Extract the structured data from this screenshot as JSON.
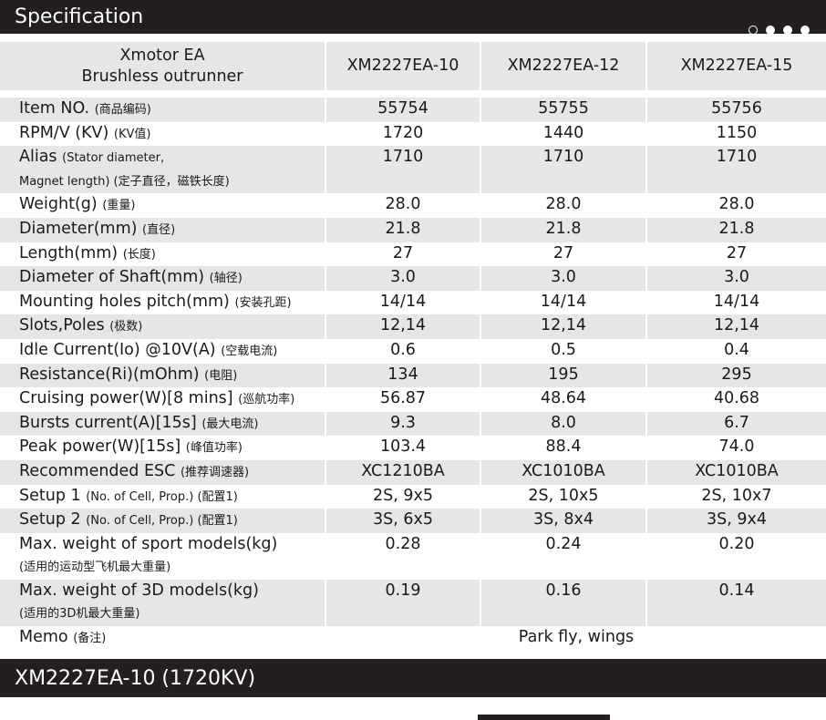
{
  "header": {
    "title": "Specification"
  },
  "table": {
    "corner": [
      "Xmotor EA",
      "Brushless outrunner"
    ],
    "columns": [
      "XM2227EA-10",
      "XM2227EA-12",
      "XM2227EA-15"
    ],
    "rows": [
      {
        "label": "Item NO.",
        "note": "(商品编码)",
        "values": [
          "55754",
          "55755",
          "55756"
        ]
      },
      {
        "label": "RPM/V (KV)",
        "note": "(KV值)",
        "values": [
          "1720",
          "1440",
          "1150"
        ]
      },
      {
        "label": "Alias",
        "note": "(Stator diameter,",
        "note2": "Magnet length) (定子直径，磁铁长度)",
        "values": [
          "1710",
          "1710",
          "1710"
        ]
      },
      {
        "label": "Weight(g)",
        "note": "(重量)",
        "values": [
          "28.0",
          "28.0",
          "28.0"
        ]
      },
      {
        "label": "Diameter(mm)",
        "note": "(直径)",
        "values": [
          "21.8",
          "21.8",
          "21.8"
        ]
      },
      {
        "label": "Length(mm)",
        "note": "(长度)",
        "values": [
          "27",
          "27",
          "27"
        ]
      },
      {
        "label": "Diameter of Shaft(mm)",
        "note": "(轴径)",
        "values": [
          "3.0",
          "3.0",
          "3.0"
        ]
      },
      {
        "label": "Mounting holes pitch(mm)",
        "note": "(安装孔距)",
        "values": [
          "14/14",
          "14/14",
          "14/14"
        ]
      },
      {
        "label": "Slots,Poles",
        "note": "(极数)",
        "values": [
          "12,14",
          "12,14",
          "12,14"
        ]
      },
      {
        "label": "Idle Current(Io) @10V(A)",
        "note": "(空载电流)",
        "values": [
          "0.6",
          "0.5",
          "0.4"
        ]
      },
      {
        "label": "Resistance(Ri)(mOhm)",
        "note": "(电阻)",
        "values": [
          "134",
          "195",
          "295"
        ]
      },
      {
        "label": "Cruising power(W)[8 mins]",
        "note": "(巡航功率)",
        "values": [
          "56.87",
          "48.64",
          "40.68"
        ]
      },
      {
        "label": "Bursts current(A)[15s]",
        "note": "(最大电流)",
        "values": [
          "9.3",
          "8.0",
          "6.7"
        ]
      },
      {
        "label": "Peak power(W)[15s]",
        "note": "(峰值功率)",
        "values": [
          "103.4",
          "88.4",
          "74.0"
        ]
      },
      {
        "label": "Recommended ESC",
        "note": "(推荐调速器)",
        "values": [
          "XC1210BA",
          "XC1010BA",
          "XC1010BA"
        ]
      },
      {
        "label": "Setup 1",
        "note": "(No. of Cell, Prop.) (配置1)",
        "values": [
          "2S, 9x5",
          "2S, 10x5",
          "2S, 10x7"
        ]
      },
      {
        "label": "Setup 2",
        "note": "(No. of Cell, Prop.) (配置1)",
        "values": [
          "3S, 6x5",
          "3S, 8x4",
          "3S, 9x4"
        ]
      },
      {
        "label": "Max. weight of sport models(kg)",
        "note2": "(适用的运动型飞机最大重量)",
        "values": [
          "0.28",
          "0.24",
          "0.20"
        ]
      },
      {
        "label": "Max. weight of 3D models(kg)",
        "note2": "(适用的3D机最大重量)",
        "values": [
          "0.19",
          "0.16",
          "0.14"
        ]
      }
    ],
    "memo": {
      "label": "Memo",
      "note": "(备注)",
      "value": "Park fly, wings"
    }
  },
  "section": {
    "title": "XM2227EA-10 (1720KV)"
  }
}
